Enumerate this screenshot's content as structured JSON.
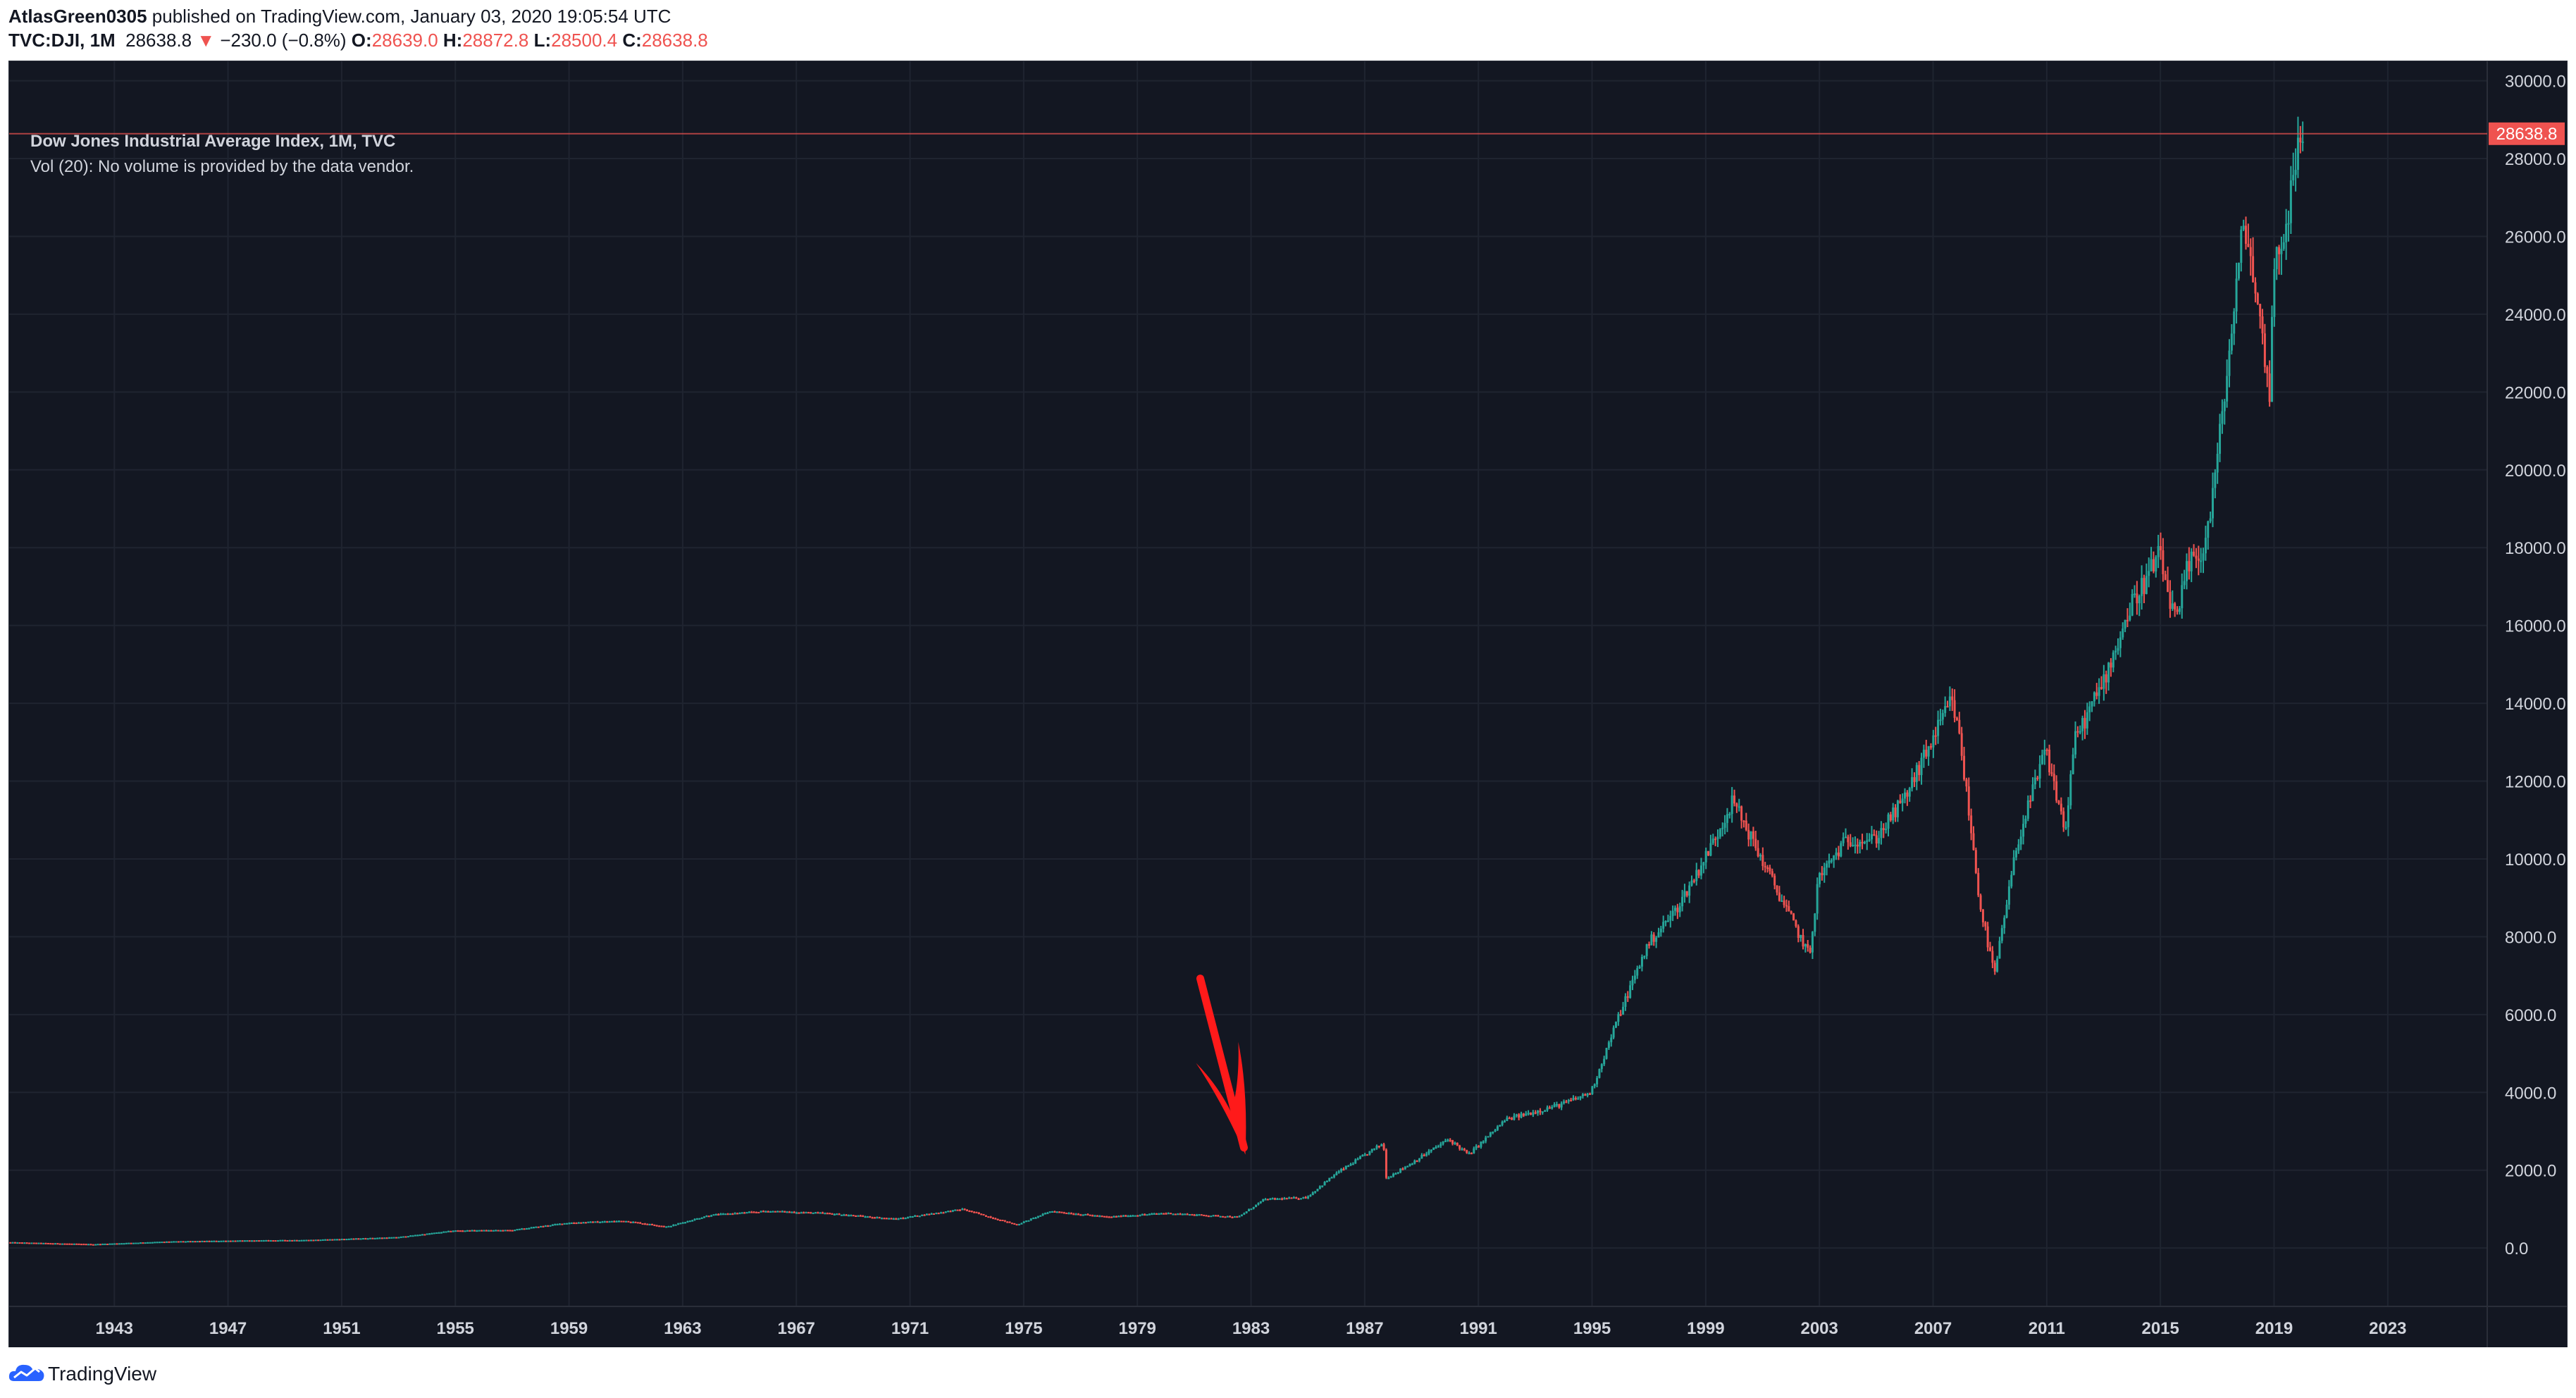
{
  "header": {
    "author": "AtlasGreen0305",
    "published_text": "published on TradingView.com, January 03, 2020 19:05:54 UTC",
    "symbol": "TVC:DJI, 1M",
    "last": "28638.8",
    "arrow": "▼",
    "change": "−230.0 (−0.8%)",
    "o_label": "O:",
    "o_value": "28639.0",
    "h_label": "H:",
    "h_value": "28872.8",
    "l_label": "L:",
    "l_value": "28500.4",
    "c_label": "C:",
    "c_value": "28638.8"
  },
  "legend": {
    "title": "Dow Jones Industrial Average Index, 1M, TVC",
    "volume_note": "Vol (20): No volume is provided by the data vendor."
  },
  "footer": {
    "brand": "TradingView"
  },
  "colors": {
    "background": "#131722",
    "grid": "#1f2430",
    "up": "#26a69a",
    "down": "#ef5350",
    "price_line": "#ef5350",
    "axis_text": "#d1d4dc",
    "annotation": "#ff1a1a"
  },
  "chart_data": {
    "type": "line",
    "title": "Dow Jones Industrial Average Index, 1M, TVC",
    "style": "candlestick",
    "xlabel": "",
    "ylabel": "",
    "xlim": [
      1939.3,
      2026.5
    ],
    "ylim": [
      -1500,
      30500
    ],
    "x_ticks": [
      "1943",
      "1947",
      "1951",
      "1955",
      "1959",
      "1963",
      "1967",
      "1971",
      "1975",
      "1979",
      "1983",
      "1987",
      "1991",
      "1995",
      "1999",
      "2003",
      "2007",
      "2011",
      "2015",
      "2019",
      "2023"
    ],
    "y_ticks": [
      "30000.0",
      "28000.0",
      "26000.0",
      "24000.0",
      "22000.0",
      "20000.0",
      "18000.0",
      "16000.0",
      "14000.0",
      "12000.0",
      "10000.0",
      "8000.0",
      "6000.0",
      "4000.0",
      "2000.0",
      "0.0"
    ],
    "current_price": 28638.8,
    "current_price_label": "28638.8",
    "grid": true,
    "series": [
      {
        "x": [
          1939.3,
          1942.3,
          1945,
          1947,
          1950,
          1953,
          1955,
          1957,
          1959,
          1961,
          1962.5,
          1964,
          1966,
          1968,
          1970.5,
          1972.9,
          1974.8,
          1976,
          1978,
          1980,
          1982.6,
          1983.5,
          1985,
          1986,
          1987.7,
          1987.8,
          1988.5,
          1990,
          1990.7,
          1992,
          1994,
          1995,
          1996,
          1997,
          1998,
          1999,
          2000,
          2001,
          2002.7,
          2003,
          2004,
          2005,
          2006,
          2007.7,
          2008,
          2008.7,
          2009.2,
          2010,
          2011,
          2011.7,
          2012,
          2013,
          2014,
          2015,
          2015.6,
          2016,
          2016.6,
          2017,
          2018,
          2018.9,
          2019,
          2019.5,
          2019.99
        ],
        "y": [
          150,
          100,
          170,
          190,
          210,
          280,
          450,
          460,
          650,
          700,
          550,
          850,
          950,
          900,
          750,
          1000,
          600,
          950,
          800,
          900,
          800,
          1250,
          1300,
          1900,
          2700,
          1800,
          2100,
          2800,
          2400,
          3300,
          3700,
          4000,
          6000,
          7800,
          8700,
          10000,
          11500,
          10000,
          7500,
          9500,
          10500,
          10500,
          11500,
          14100,
          13000,
          8800,
          7000,
          10400,
          12800,
          10700,
          13000,
          14500,
          16500,
          17800,
          16000,
          17500,
          18000,
          20000,
          26500,
          22000,
          25000,
          26500,
          28638.8
        ]
      }
    ]
  },
  "annotation": {
    "type": "arrow",
    "points_to_year": 1982.8,
    "points_to_value": 2400
  }
}
